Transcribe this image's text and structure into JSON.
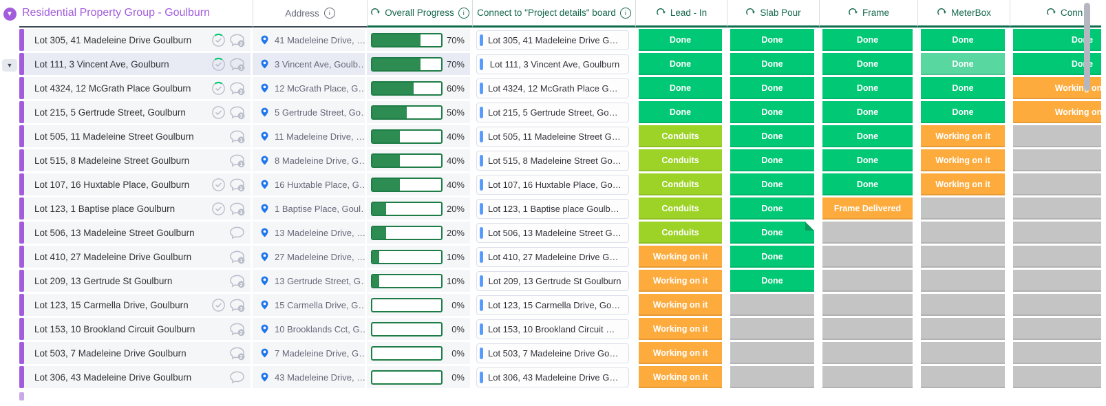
{
  "board": {
    "group_title": "Residential Property Group - Goulburn"
  },
  "columns": {
    "address": {
      "label": "Address"
    },
    "progress": {
      "label": "Overall Progress"
    },
    "connect": {
      "label": "Connect to \"Project details\" board"
    },
    "statuses": [
      {
        "label": "Lead - In"
      },
      {
        "label": "Slab Pour"
      },
      {
        "label": "Frame"
      },
      {
        "label": "MeterBox"
      },
      {
        "label": "Conn"
      }
    ]
  },
  "colors": {
    "done": "#00c875",
    "done_light": "#58d7a0",
    "conduits": "#9cd326",
    "working": "#fdab3d",
    "frame_delivered": "#fdab3d",
    "empty": "#c4c4c4",
    "group_purple": "#a25ddc",
    "mirror_green": "#15684b",
    "link_blue": "#579bfc",
    "pin_blue": "#1f76ed",
    "progress_green": "#2d8c52"
  },
  "rows": [
    {
      "name": "Lot 305, 41 Madeleine Drive Goulburn",
      "check": true,
      "arc": true,
      "chat": "2",
      "address": "41 Madeleine Drive, …",
      "progress": 70,
      "progress_label": "70%",
      "connect": "Lot 305, 41 Madeleine Drive Goulb…",
      "statuses": [
        {
          "t": "Done",
          "c": "done"
        },
        {
          "t": "Done",
          "c": "done"
        },
        {
          "t": "Done",
          "c": "done"
        },
        {
          "t": "Done",
          "c": "done"
        },
        {
          "t": "Done",
          "c": "done"
        }
      ]
    },
    {
      "name": "Lot 111, 3 Vincent Ave, Goulburn",
      "selected": true,
      "expand": true,
      "check": true,
      "arc": true,
      "chat": "1",
      "address": "3 Vincent Ave, Goulb…",
      "progress": 70,
      "progress_label": "70%",
      "connect": "Lot 111, 3 Vincent Ave, Goulburn",
      "statuses": [
        {
          "t": "Done",
          "c": "done"
        },
        {
          "t": "Done",
          "c": "done"
        },
        {
          "t": "Done",
          "c": "done"
        },
        {
          "t": "Done",
          "c": "done_light"
        },
        {
          "t": "Done",
          "c": "done"
        }
      ]
    },
    {
      "name": "Lot 4324, 12 McGrath Place Goulburn",
      "check": true,
      "arc": true,
      "chat": "2",
      "address": "12 McGrath Place, G…",
      "progress": 60,
      "progress_label": "60%",
      "connect": "Lot 4324, 12 McGrath Place Goulb…",
      "statuses": [
        {
          "t": "Done",
          "c": "done"
        },
        {
          "t": "Done",
          "c": "done"
        },
        {
          "t": "Done",
          "c": "done"
        },
        {
          "t": "Done",
          "c": "done"
        },
        {
          "t": "Working on it",
          "c": "working"
        }
      ]
    },
    {
      "name": "Lot 215, 5 Gertrude Street, Goulburn",
      "check": true,
      "arc": false,
      "chat": "3",
      "address": "5 Gertrude Street, Go…",
      "progress": 50,
      "progress_label": "50%",
      "connect": "Lot 215, 5 Gertrude Street, Goulburn",
      "statuses": [
        {
          "t": "Done",
          "c": "done"
        },
        {
          "t": "Done",
          "c": "done"
        },
        {
          "t": "Done",
          "c": "done"
        },
        {
          "t": "Done",
          "c": "done"
        },
        {
          "t": "Working on it",
          "c": "working"
        }
      ]
    },
    {
      "name": "Lot 505, 11 Madeleine Street Goulburn",
      "check": false,
      "chat": "1",
      "address": "11 Madeleine Drive, …",
      "progress": 40,
      "progress_label": "40%",
      "connect": "Lot 505, 11 Madeleine Street Goul…",
      "statuses": [
        {
          "t": "Conduits",
          "c": "conduits"
        },
        {
          "t": "Done",
          "c": "done"
        },
        {
          "t": "Done",
          "c": "done"
        },
        {
          "t": "Working on it",
          "c": "working"
        },
        {
          "t": "",
          "c": "empty"
        }
      ]
    },
    {
      "name": "Lot 515, 8 Madeleine Street Goulburn",
      "check": false,
      "chat": "1",
      "address": "8 Madeleine Drive, G…",
      "progress": 40,
      "progress_label": "40%",
      "connect": "Lot 515, 8 Madeleine Street Goulb…",
      "statuses": [
        {
          "t": "Conduits",
          "c": "conduits"
        },
        {
          "t": "Done",
          "c": "done"
        },
        {
          "t": "Done",
          "c": "done"
        },
        {
          "t": "Working on it",
          "c": "working"
        },
        {
          "t": "",
          "c": "empty"
        }
      ]
    },
    {
      "name": "Lot 107, 16 Huxtable Place, Goulburn",
      "check": true,
      "arc": false,
      "chat": "2",
      "address": "16 Huxtable Place, G…",
      "progress": 40,
      "progress_label": "40%",
      "connect": "Lot 107, 16 Huxtable Place, Goulb…",
      "statuses": [
        {
          "t": "Conduits",
          "c": "conduits"
        },
        {
          "t": "Done",
          "c": "done"
        },
        {
          "t": "Done",
          "c": "done"
        },
        {
          "t": "Working on it",
          "c": "working"
        },
        {
          "t": "",
          "c": "empty"
        }
      ]
    },
    {
      "name": "Lot 123, 1 Baptise place Goulburn",
      "check": true,
      "arc": false,
      "chat": "3",
      "address": "1 Baptise Place, Goul…",
      "progress": 20,
      "progress_label": "20%",
      "connect": "Lot 123, 1 Baptise place Goulburn",
      "statuses": [
        {
          "t": "Conduits",
          "c": "conduits"
        },
        {
          "t": "Done",
          "c": "done"
        },
        {
          "t": "Frame Delivered",
          "c": "frame_delivered"
        },
        {
          "t": "",
          "c": "empty"
        },
        {
          "t": "",
          "c": "empty"
        }
      ]
    },
    {
      "name": "Lot 506, 13 Madeleine Street Goulburn",
      "check": false,
      "chat": "",
      "address": "13 Madeleine Drive, …",
      "progress": 20,
      "progress_label": "20%",
      "connect": "Lot 506, 13 Madeleine Street Goul…",
      "statuses": [
        {
          "t": "Conduits",
          "c": "conduits"
        },
        {
          "t": "Done",
          "c": "done",
          "corner": true
        },
        {
          "t": "",
          "c": "empty"
        },
        {
          "t": "",
          "c": "empty"
        },
        {
          "t": "",
          "c": "empty"
        }
      ]
    },
    {
      "name": "Lot 410, 27 Madeleine Drive Goulburn",
      "check": false,
      "chat": "1",
      "address": "27 Madeleine Drive, …",
      "progress": 10,
      "progress_label": "10%",
      "connect": "Lot 410, 27 Madeleine Drive Goulb…",
      "statuses": [
        {
          "t": "Working on it",
          "c": "working"
        },
        {
          "t": "Done",
          "c": "done"
        },
        {
          "t": "",
          "c": "empty"
        },
        {
          "t": "",
          "c": "empty"
        },
        {
          "t": "",
          "c": "empty"
        }
      ]
    },
    {
      "name": "Lot 209, 13 Gertrude St Goulburn",
      "check": false,
      "chat": "2",
      "address": "13 Gertrude Street, G…",
      "progress": 10,
      "progress_label": "10%",
      "connect": "Lot 209, 13 Gertrude St Goulburn",
      "statuses": [
        {
          "t": "Working on it",
          "c": "working"
        },
        {
          "t": "Done",
          "c": "done"
        },
        {
          "t": "",
          "c": "empty"
        },
        {
          "t": "",
          "c": "empty"
        },
        {
          "t": "",
          "c": "empty"
        }
      ]
    },
    {
      "name": "Lot 123, 15 Carmella Drive, Goulburn",
      "check": true,
      "arc": false,
      "chat": "3",
      "address": "15 Carmella Drive, G…",
      "progress": 0,
      "progress_label": "0%",
      "connect": "Lot 123, 15 Carmella Drive, Goulbu…",
      "statuses": [
        {
          "t": "Working on it",
          "c": "working"
        },
        {
          "t": "",
          "c": "empty"
        },
        {
          "t": "",
          "c": "empty"
        },
        {
          "t": "",
          "c": "empty"
        },
        {
          "t": "",
          "c": "empty"
        }
      ]
    },
    {
      "name": "Lot 153, 10 Brookland Circuit Goulburn",
      "check": false,
      "chat": "2",
      "address": "10 Brooklands Cct, G…",
      "progress": 0,
      "progress_label": "0%",
      "connect": "Lot 153, 10 Brookland Circuit Goul…",
      "statuses": [
        {
          "t": "Working on it",
          "c": "working"
        },
        {
          "t": "",
          "c": "empty"
        },
        {
          "t": "",
          "c": "empty"
        },
        {
          "t": "",
          "c": "empty"
        },
        {
          "t": "",
          "c": "empty"
        }
      ]
    },
    {
      "name": "Lot 503, 7 Madeleine Drive Goulburn",
      "check": false,
      "chat": "2",
      "address": "7 Madeleine Drive, G…",
      "progress": 0,
      "progress_label": "0%",
      "connect": "Lot 503, 7 Madeleine Drive Goulbu…",
      "statuses": [
        {
          "t": "Working on it",
          "c": "working"
        },
        {
          "t": "",
          "c": "empty"
        },
        {
          "t": "",
          "c": "empty"
        },
        {
          "t": "",
          "c": "empty"
        },
        {
          "t": "",
          "c": "empty"
        }
      ]
    },
    {
      "name": "Lot 306, 43 Madeleine Drive Goulburn",
      "check": false,
      "chat": "",
      "address": "43 Madeleine Drive, …",
      "progress": 0,
      "progress_label": "0%",
      "connect": "Lot 306, 43 Madeleine Drive Goulb…",
      "statuses": [
        {
          "t": "Working on it",
          "c": "working"
        },
        {
          "t": "",
          "c": "empty"
        },
        {
          "t": "",
          "c": "empty"
        },
        {
          "t": "",
          "c": "empty"
        },
        {
          "t": "",
          "c": "empty"
        }
      ]
    }
  ]
}
